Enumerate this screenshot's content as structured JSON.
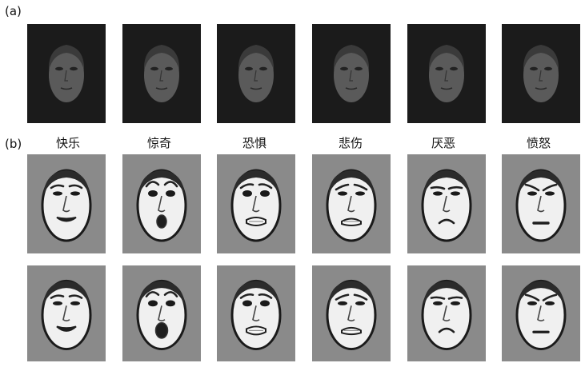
{
  "panels": {
    "a": {
      "label": "(a)"
    },
    "b": {
      "label": "(b)"
    }
  },
  "emotions": [
    {
      "label": "快乐",
      "expression": "happy"
    },
    {
      "label": "惊奇",
      "expression": "surprise"
    },
    {
      "label": "恐惧",
      "expression": "fear"
    },
    {
      "label": "悲伤",
      "expression": "sad"
    },
    {
      "label": "厌恶",
      "expression": "disgust"
    },
    {
      "label": "愤怒",
      "expression": "anger"
    }
  ],
  "colors": {
    "dark_background": "#1b1b1b",
    "dark_face": "#5a5a5a",
    "gray_background": "#8a8a8a",
    "face_fill": "#f0f0f0",
    "face_edge": "#1a1a1a"
  }
}
